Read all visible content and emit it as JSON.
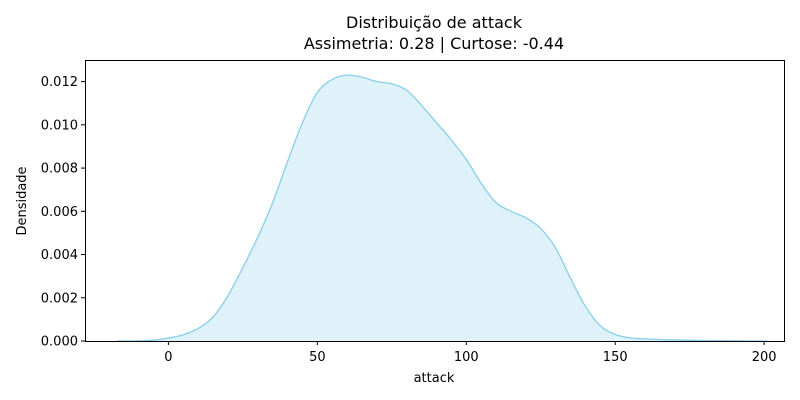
{
  "chart_data": {
    "type": "area",
    "title": "Distribuição de attack",
    "subtitle": "Assimetria: 0.28 | Curtose: -0.44",
    "xlabel": "attack",
    "ylabel": "Densidade",
    "xlim": [
      -28,
      207
    ],
    "ylim": [
      0,
      0.013
    ],
    "x_ticks": [
      0,
      50,
      100,
      150,
      200
    ],
    "x_tick_labels": [
      "0",
      "50",
      "100",
      "150",
      "200"
    ],
    "y_ticks": [
      0,
      0.002,
      0.004,
      0.006,
      0.008,
      0.01,
      0.012
    ],
    "y_tick_labels": [
      "0.000",
      "0.002",
      "0.004",
      "0.006",
      "0.008",
      "0.010",
      "0.012"
    ],
    "grid": false,
    "line_color": "#87ceeb",
    "fill_color": "#87ceeb",
    "fill_opacity": 0.27,
    "series": [
      {
        "x": [
          -17,
          -10,
          -5,
          0,
          5,
          10,
          15,
          20,
          25,
          30,
          35,
          40,
          45,
          50,
          55,
          60,
          65,
          70,
          75,
          80,
          85,
          90,
          95,
          100,
          105,
          110,
          115,
          120,
          125,
          130,
          135,
          140,
          145,
          150,
          155,
          160,
          170,
          180,
          190,
          201
        ],
        "y": [
          0.0,
          1e-05,
          4e-05,
          0.00014,
          0.00029,
          0.00058,
          0.00111,
          0.0021,
          0.0034,
          0.0048,
          0.0064,
          0.0083,
          0.0101,
          0.0115,
          0.0121,
          0.0123,
          0.0122,
          0.012,
          0.0119,
          0.0116,
          0.0109,
          0.0101,
          0.0093,
          0.0084,
          0.0073,
          0.0064,
          0.006,
          0.0057,
          0.0052,
          0.0043,
          0.0029,
          0.0016,
          0.0007,
          0.0003,
          0.00015,
          0.0001,
          5e-05,
          2e-05,
          1e-05,
          0.0
        ]
      }
    ]
  }
}
